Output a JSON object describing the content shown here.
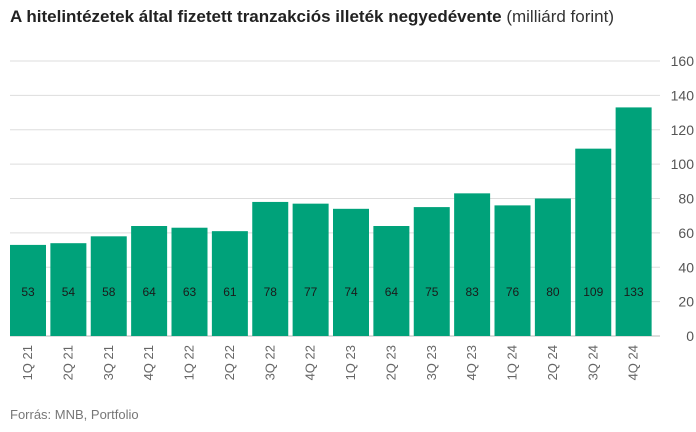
{
  "header": {
    "title": "A hitelintézetek által fizetett tranzakciós illeték negyedévente",
    "unit": "(milliárd forint)"
  },
  "footer": {
    "source": "Forrás: MNB, Portfolio"
  },
  "chart_data": {
    "type": "bar",
    "categories": [
      "1Q 21",
      "2Q 21",
      "3Q 21",
      "4Q 21",
      "1Q 22",
      "2Q 22",
      "3Q 22",
      "4Q 22",
      "1Q 23",
      "2Q 23",
      "3Q 23",
      "4Q 23",
      "1Q 24",
      "2Q 24",
      "3Q 24",
      "4Q 24"
    ],
    "values": [
      53,
      54,
      58,
      64,
      63,
      61,
      78,
      77,
      74,
      64,
      75,
      83,
      76,
      80,
      109,
      133
    ],
    "title": "A hitelintézetek által fizetett tranzakciós illeték negyedévente",
    "ylim": [
      0,
      160
    ],
    "yticks": [
      0,
      20,
      40,
      60,
      80,
      100,
      120,
      140,
      160
    ],
    "y_axis_position": "right",
    "grid": true,
    "bar_color": "#00a27a",
    "grid_color": "#dddddd"
  }
}
